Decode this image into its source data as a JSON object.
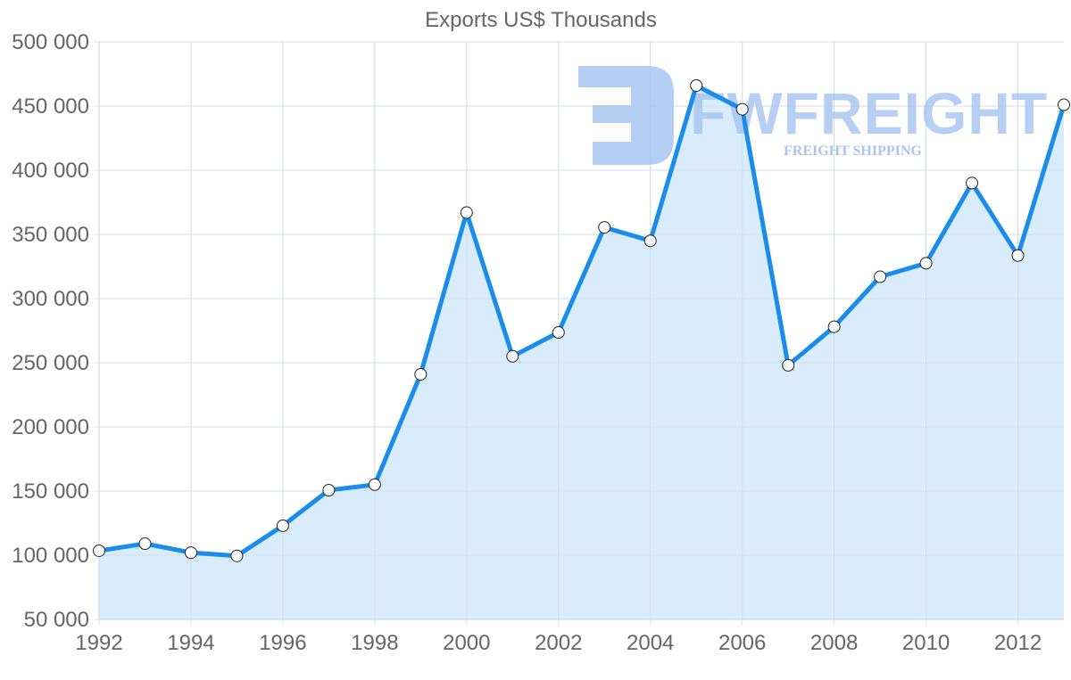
{
  "chart_data": {
    "type": "area",
    "title": "Exports US$ Thousands",
    "xlabel": "",
    "ylabel": "",
    "x": [
      1992,
      1993,
      1994,
      1995,
      1996,
      1997,
      1998,
      1999,
      2000,
      2001,
      2002,
      2003,
      2004,
      2005,
      2006,
      2007,
      2008,
      2009,
      2010,
      2011,
      2012,
      2013
    ],
    "series": [
      {
        "name": "Exports US$ Thousands",
        "values": [
          103500,
          109000,
          102000,
          99500,
          123000,
          150700,
          155000,
          241000,
          367000,
          255000,
          273600,
          355500,
          345000,
          466000,
          447500,
          248000,
          278000,
          317000,
          327500,
          390000,
          333500,
          451000
        ]
      }
    ],
    "ylim": [
      50000,
      500000
    ],
    "xlim": [
      1992,
      2013
    ],
    "y_ticks": [
      50000,
      100000,
      150000,
      200000,
      250000,
      300000,
      350000,
      400000,
      450000,
      500000
    ],
    "y_tick_labels": [
      "50 000",
      "100 000",
      "150 000",
      "200 000",
      "250 000",
      "300 000",
      "350 000",
      "400 000",
      "450 000",
      "500 000"
    ],
    "x_ticks": [
      1992,
      1994,
      1996,
      1998,
      2000,
      2002,
      2004,
      2006,
      2008,
      2010,
      2012
    ],
    "x_tick_labels": [
      "1992",
      "1994",
      "1996",
      "1998",
      "2000",
      "2002",
      "2004",
      "2006",
      "2008",
      "2010",
      "2012"
    ],
    "grid": true,
    "legend": "none"
  },
  "colors": {
    "line": "#1a8ceb",
    "fill": "#d7ebfc",
    "grid": "#e3e3e3",
    "axis": "#cccccc",
    "text": "#666666",
    "marker_fill": "#ffffff",
    "marker_stroke": "#222222"
  },
  "watermark": {
    "brand": "FWFREIGHT",
    "tagline": "FREIGHT SHIPPING"
  }
}
